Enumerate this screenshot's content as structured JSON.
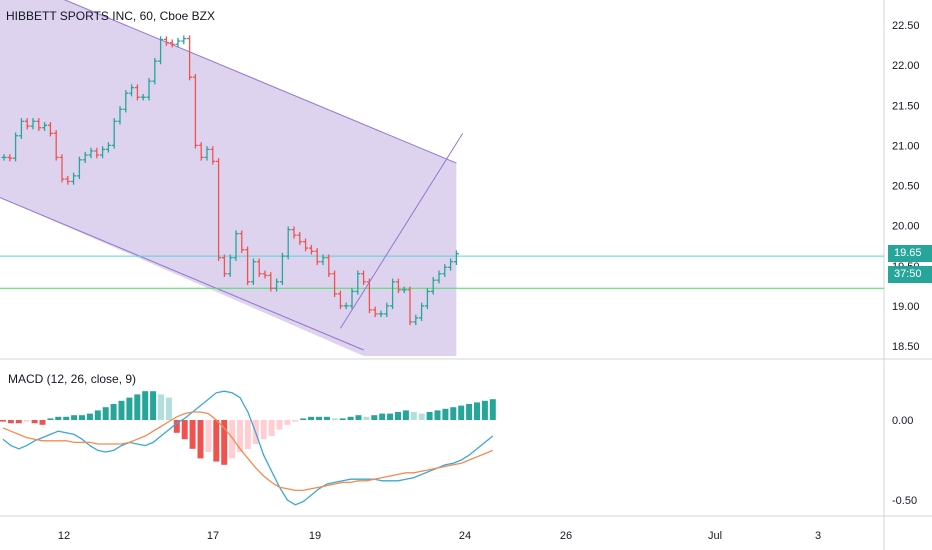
{
  "header": {
    "title": "HIBBETT SPORTS INC, 60, Cboe BZX",
    "macd_title": "MACD (12, 26, close, 9)"
  },
  "price_axis": {
    "ticks": [
      "22.50",
      "22.00",
      "21.50",
      "21.00",
      "20.50",
      "20.00",
      "19.50",
      "19.00",
      "18.50"
    ],
    "last_price_tag": "19.65",
    "countdown_tag": "37:50",
    "last_price_tag_color": "#26a69a",
    "countdown_tag_color": "#26a69a"
  },
  "macd_axis": {
    "ticks": [
      "0.00",
      "-0.50"
    ]
  },
  "time_axis": {
    "ticks": [
      "12",
      "17",
      "19",
      "24",
      "26",
      "Jul",
      "3"
    ]
  },
  "colors": {
    "up": "#26a69a",
    "down": "#ef5350",
    "channel_fill": "#b39ddb",
    "channel_line": "#9575cd",
    "horizontal_cyan": "#5ad2d8",
    "horizontal_green": "#4cd964",
    "macd_line": "#3aa7d8",
    "signal_line": "#f48a4f",
    "hist_up_strong": "#26a69a",
    "hist_up_weak": "#b2dfdb",
    "hist_down_strong": "#ef5350",
    "hist_down_weak": "#ffcdd2"
  },
  "chart_data": [
    {
      "type": "candlestick",
      "title": "HIBBETT SPORTS INC, 60, Cboe BZX",
      "ylim": [
        18.4,
        22.75
      ],
      "y_ticks": [
        22.5,
        22.0,
        21.5,
        21.0,
        20.5,
        20.0,
        19.5,
        19.0,
        18.5
      ],
      "x_ticks": [
        "12",
        "17",
        "19",
        "24",
        "26",
        "Jul",
        "3"
      ],
      "closes": [
        20.85,
        20.84,
        21.12,
        21.3,
        21.24,
        21.3,
        21.22,
        21.25,
        21.15,
        20.85,
        20.58,
        20.55,
        20.62,
        20.82,
        20.88,
        20.93,
        20.88,
        20.95,
        21.0,
        21.3,
        21.45,
        21.65,
        21.72,
        21.6,
        21.6,
        21.8,
        22.05,
        22.32,
        22.28,
        22.26,
        22.3,
        22.33,
        21.85,
        21.0,
        20.85,
        20.95,
        20.8,
        19.6,
        19.4,
        19.6,
        19.9,
        19.7,
        19.3,
        19.55,
        19.4,
        19.38,
        19.22,
        19.3,
        19.62,
        19.95,
        19.88,
        19.8,
        19.72,
        19.68,
        19.55,
        19.6,
        19.4,
        19.15,
        19.0,
        19.0,
        19.18,
        19.4,
        19.3,
        18.95,
        18.9,
        18.9,
        19.0,
        19.3,
        19.2,
        19.2,
        18.8,
        18.85,
        19.0,
        19.18,
        19.32,
        19.4,
        19.48,
        19.55,
        19.65
      ],
      "horizontal_lines": [
        19.62,
        19.22
      ],
      "channel": {
        "upper_start": [
          0,
          23.15
        ],
        "upper_end": [
          78,
          20.78
        ],
        "lower_start": [
          0,
          20.35
        ],
        "lower_end": [
          62,
          18.45
        ],
        "right_edge_index": 78
      },
      "trend_line": {
        "start": [
          58,
          18.72
        ],
        "end": [
          79,
          21.15
        ]
      }
    },
    {
      "type": "macd",
      "title": "MACD (12, 26, close, 9)",
      "ylim": [
        -0.6,
        0.25
      ],
      "y_ticks": [
        0.0,
        -0.5
      ],
      "macd": [
        -0.12,
        -0.16,
        -0.18,
        -0.16,
        -0.13,
        -0.11,
        -0.09,
        -0.07,
        -0.08,
        -0.09,
        -0.12,
        -0.16,
        -0.19,
        -0.2,
        -0.19,
        -0.16,
        -0.14,
        -0.15,
        -0.16,
        -0.14,
        -0.1,
        -0.06,
        -0.02,
        0.01,
        0.05,
        0.09,
        0.13,
        0.17,
        0.18,
        0.17,
        0.14,
        0.05,
        -0.08,
        -0.22,
        -0.32,
        -0.42,
        -0.5,
        -0.53,
        -0.51,
        -0.47,
        -0.43,
        -0.4,
        -0.39,
        -0.38,
        -0.37,
        -0.37,
        -0.37,
        -0.37,
        -0.38,
        -0.38,
        -0.38,
        -0.37,
        -0.36,
        -0.34,
        -0.32,
        -0.3,
        -0.28,
        -0.27,
        -0.25,
        -0.22,
        -0.18,
        -0.14,
        -0.1
      ],
      "signal": [
        -0.05,
        -0.07,
        -0.09,
        -0.11,
        -0.12,
        -0.13,
        -0.13,
        -0.13,
        -0.13,
        -0.14,
        -0.14,
        -0.14,
        -0.15,
        -0.15,
        -0.15,
        -0.15,
        -0.14,
        -0.12,
        -0.1,
        -0.07,
        -0.04,
        -0.01,
        0.02,
        0.04,
        0.05,
        0.05,
        0.04,
        0.0,
        -0.05,
        -0.11,
        -0.18,
        -0.24,
        -0.3,
        -0.35,
        -0.39,
        -0.42,
        -0.43,
        -0.44,
        -0.44,
        -0.43,
        -0.42,
        -0.41,
        -0.4,
        -0.39,
        -0.39,
        -0.38,
        -0.38,
        -0.37,
        -0.36,
        -0.35,
        -0.34,
        -0.33,
        -0.33,
        -0.32,
        -0.31,
        -0.3,
        -0.29,
        -0.28,
        -0.27,
        -0.25,
        -0.23,
        -0.21,
        -0.19
      ],
      "histogram": [
        -0.01,
        -0.02,
        -0.02,
        -0.01,
        -0.02,
        -0.03,
        0.01,
        0.02,
        0.02,
        0.03,
        0.03,
        0.04,
        0.06,
        0.08,
        0.1,
        0.12,
        0.14,
        0.16,
        0.18,
        0.18,
        0.16,
        0.14,
        -0.08,
        -0.12,
        -0.18,
        -0.24,
        -0.2,
        -0.26,
        -0.28,
        -0.24,
        -0.2,
        -0.18,
        -0.15,
        -0.12,
        -0.1,
        -0.06,
        -0.03,
        -0.01,
        0.01,
        0.02,
        0.02,
        0.02,
        0.01,
        0.01,
        0.02,
        0.03,
        0.02,
        0.03,
        0.04,
        0.04,
        0.05,
        0.06,
        0.05,
        0.04,
        0.05,
        0.06,
        0.07,
        0.08,
        0.09,
        0.1,
        0.11,
        0.12,
        0.13
      ]
    }
  ]
}
